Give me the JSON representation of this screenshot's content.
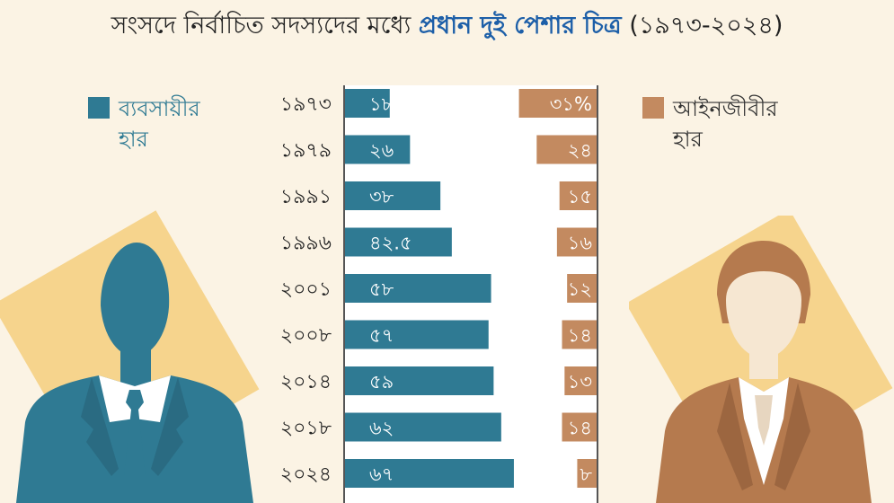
{
  "title": {
    "prefix": "সংসদে নির্বাচিত সদস্যদের মধ্যে",
    "highlight": "প্রধান দুই পেশার চিত্র",
    "suffix": "(১৯৭৩-২০২৪)"
  },
  "legend": {
    "business": {
      "line1": "ব্যবসায়ীর",
      "line2": "হার"
    },
    "lawyer": {
      "line1": "আইনজীবীর",
      "line2": "হার"
    }
  },
  "colors": {
    "business": "#2f7a93",
    "lawyer": "#c38a60",
    "background": "#fbf3e4",
    "title_highlight": "#1d5fa8",
    "figure_backdrop": "#f6d48d"
  },
  "icons": [
    "businessman-silhouette-icon",
    "lawyer-silhouette-icon"
  ],
  "chart_data": {
    "type": "bar",
    "orientation": "horizontal",
    "stacked": true,
    "categories": [
      "১৯৭৩",
      "১৯৭৯",
      "১৯৯১",
      "১৯৯৬",
      "২০০১",
      "২০০৮",
      "২০১৪",
      "২০১৮",
      "২০২৪"
    ],
    "series": [
      {
        "name": "ব্যবসায়ীর হার",
        "values": [
          18,
          26,
          38,
          42.5,
          58,
          57,
          59,
          62,
          67
        ],
        "labels": [
          "১৮%",
          "২৬",
          "৩৮",
          "৪২.৫",
          "৫৮",
          "৫৭",
          "৫৯",
          "৬২",
          "৬৭"
        ]
      },
      {
        "name": "আইনজীবীর হার",
        "values": [
          31,
          24,
          15,
          16,
          12,
          14,
          13,
          14,
          8
        ],
        "labels": [
          "৩১%",
          "২৪",
          "১৫",
          "১৬",
          "১২",
          "১৪",
          "১৩",
          "১৪",
          "৮"
        ]
      }
    ],
    "xlim": [
      0,
      100
    ],
    "grid": false
  }
}
